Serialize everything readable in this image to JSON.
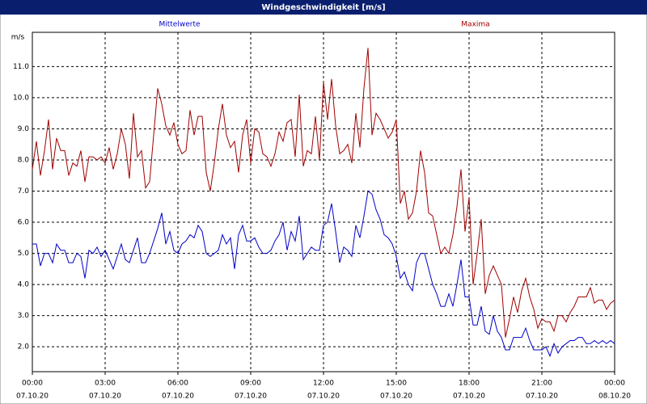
{
  "chart_data": {
    "type": "line",
    "title": "Windgeschwindigkeit [m/s]",
    "y_label": "m/s",
    "x": [
      0,
      10,
      20,
      30,
      40,
      50,
      60,
      70,
      80,
      90,
      100,
      110,
      120,
      130,
      140,
      150,
      160,
      170,
      180,
      190,
      200,
      210,
      220,
      230,
      240,
      250,
      260,
      270,
      280,
      290,
      300,
      310,
      320,
      330,
      340,
      350,
      360,
      370,
      380,
      390,
      400,
      410,
      420,
      430,
      440,
      450,
      460,
      470,
      480,
      490,
      500,
      510,
      520,
      530,
      540,
      550,
      560,
      570,
      580,
      590,
      600,
      610,
      620,
      630,
      640,
      650,
      660,
      670,
      680,
      690,
      700,
      710,
      720,
      730,
      740,
      750,
      760,
      770,
      780,
      790,
      800,
      810,
      820,
      830,
      840,
      850,
      860,
      870,
      880,
      890,
      900,
      910,
      920,
      930,
      940,
      950,
      960,
      970,
      980,
      990,
      1000,
      1010,
      1020,
      1030,
      1040,
      1050,
      1060,
      1070,
      1080,
      1090,
      1100,
      1110,
      1120,
      1130,
      1140,
      1150,
      1160,
      1170,
      1180,
      1190,
      1200,
      1210,
      1220,
      1230,
      1240,
      1250,
      1260,
      1270,
      1280,
      1290,
      1300,
      1310,
      1320,
      1330,
      1340,
      1350,
      1360,
      1370,
      1380,
      1390,
      1400,
      1410,
      1420,
      1430,
      1440
    ],
    "series": [
      {
        "name": "Mittelwerte",
        "color": "#0000c8",
        "values": [
          5.3,
          5.3,
          4.6,
          5.0,
          5.0,
          4.7,
          5.3,
          5.1,
          5.1,
          4.7,
          4.7,
          5.0,
          4.9,
          4.2,
          5.1,
          5.0,
          5.2,
          4.9,
          5.1,
          4.8,
          4.5,
          4.9,
          5.3,
          4.8,
          4.7,
          5.1,
          5.5,
          4.7,
          4.7,
          5.0,
          5.4,
          5.8,
          6.3,
          5.3,
          5.7,
          5.1,
          5.0,
          5.3,
          5.4,
          5.6,
          5.5,
          5.9,
          5.7,
          5.0,
          4.9,
          5.0,
          5.1,
          5.6,
          5.3,
          5.5,
          4.5,
          5.6,
          5.9,
          5.4,
          5.4,
          5.5,
          5.2,
          5.0,
          5.0,
          5.1,
          5.4,
          5.6,
          6.0,
          5.1,
          5.7,
          5.4,
          6.2,
          4.8,
          5.0,
          5.2,
          5.1,
          5.1,
          5.9,
          6.0,
          6.6,
          5.7,
          4.7,
          5.2,
          5.1,
          4.9,
          5.9,
          5.5,
          6.2,
          7.0,
          6.9,
          6.4,
          6.1,
          5.6,
          5.5,
          5.3,
          4.9,
          4.2,
          4.4,
          4.0,
          3.8,
          4.7,
          5.0,
          5.0,
          4.5,
          4.0,
          3.7,
          3.3,
          3.3,
          3.7,
          3.3,
          4.0,
          4.8,
          3.6,
          3.6,
          2.7,
          2.7,
          3.3,
          2.5,
          2.4,
          3.0,
          2.5,
          2.3,
          1.9,
          1.9,
          2.3,
          2.3,
          2.3,
          2.6,
          2.2,
          1.9,
          1.9,
          1.9,
          2.0,
          1.7,
          2.1,
          1.8,
          2.0,
          2.1,
          2.2,
          2.2,
          2.3,
          2.3,
          2.1,
          2.1,
          2.2,
          2.1,
          2.2,
          2.1,
          2.2,
          2.1
        ]
      },
      {
        "name": "Maxima",
        "color": "#a00000",
        "values": [
          7.7,
          8.6,
          7.5,
          8.3,
          9.3,
          7.7,
          8.7,
          8.3,
          8.3,
          7.5,
          7.9,
          7.8,
          8.3,
          7.3,
          8.1,
          8.1,
          8.0,
          8.1,
          7.9,
          8.4,
          7.7,
          8.2,
          9.0,
          8.5,
          7.4,
          9.5,
          8.1,
          8.3,
          7.1,
          7.3,
          8.8,
          10.3,
          9.8,
          9.1,
          8.8,
          9.2,
          8.5,
          8.2,
          8.3,
          9.6,
          8.8,
          9.4,
          9.4,
          7.6,
          7.0,
          7.9,
          9.0,
          9.8,
          8.8,
          8.4,
          8.6,
          7.6,
          8.8,
          9.3,
          7.9,
          9.0,
          8.9,
          8.2,
          8.1,
          7.8,
          8.2,
          8.9,
          8.6,
          9.2,
          9.3,
          8.1,
          10.1,
          7.8,
          8.3,
          8.2,
          9.4,
          8.0,
          10.5,
          9.3,
          10.6,
          9.1,
          8.2,
          8.3,
          8.5,
          7.9,
          9.5,
          8.4,
          10.3,
          11.6,
          8.8,
          9.5,
          9.3,
          9.0,
          8.7,
          8.9,
          9.3,
          6.6,
          7.0,
          6.1,
          6.3,
          7.0,
          8.3,
          7.6,
          6.3,
          6.2,
          5.6,
          5.0,
          5.2,
          5.0,
          5.6,
          6.5,
          7.7,
          5.7,
          6.8,
          4.0,
          5.0,
          6.1,
          3.7,
          4.3,
          4.6,
          4.3,
          4.0,
          2.3,
          2.9,
          3.6,
          3.1,
          3.8,
          4.2,
          3.6,
          3.2,
          2.6,
          2.9,
          2.8,
          2.8,
          2.5,
          3.0,
          3.0,
          2.8,
          3.1,
          3.3,
          3.6,
          3.6,
          3.6,
          3.9,
          3.4,
          3.5,
          3.5,
          3.2,
          3.4,
          3.5
        ]
      }
    ],
    "xlim": [
      0,
      1440
    ],
    "xticks": [
      {
        "value": 0,
        "label": "00:00"
      },
      {
        "value": 180,
        "label": "03:00"
      },
      {
        "value": 360,
        "label": "06:00"
      },
      {
        "value": 540,
        "label": "09:00"
      },
      {
        "value": 720,
        "label": "12:00"
      },
      {
        "value": 900,
        "label": "15:00"
      },
      {
        "value": 1080,
        "label": "18:00"
      },
      {
        "value": 1260,
        "label": "21:00"
      },
      {
        "value": 1440,
        "label": "00:00"
      }
    ],
    "xtick_dates": [
      "07.10.20",
      "07.10.20",
      "07.10.20",
      "07.10.20",
      "07.10.20",
      "07.10.20",
      "07.10.20",
      "07.10.20",
      "08.10.20"
    ],
    "ylim": [
      1.2,
      12.1
    ],
    "yticks": [
      {
        "value": 2,
        "label": "2.0"
      },
      {
        "value": 3,
        "label": "3.0"
      },
      {
        "value": 4,
        "label": "4.0"
      },
      {
        "value": 5,
        "label": "5.0"
      },
      {
        "value": 6,
        "label": "6.0"
      },
      {
        "value": 7,
        "label": "7.0"
      },
      {
        "value": 8,
        "label": "8.0"
      },
      {
        "value": 9,
        "label": "9.0"
      },
      {
        "value": 10,
        "label": "10.0"
      },
      {
        "value": 11,
        "label": "11.0"
      }
    ],
    "grid": true
  }
}
